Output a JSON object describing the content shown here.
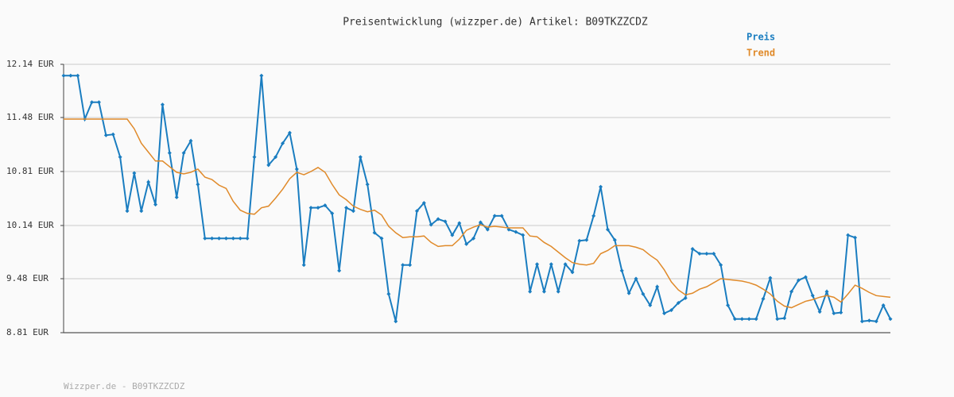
{
  "chart_data": {
    "type": "line",
    "title": "Preisentwicklung (wizzper.de) Artikel: B09TKZZCDZ",
    "footer": "Wizzper.de - B09TKZZCDZ",
    "categories": [
      null,
      null,
      null,
      null,
      null,
      null,
      null,
      null,
      null,
      null,
      null,
      null,
      null,
      null,
      null,
      null,
      null,
      null,
      null,
      null,
      null,
      null,
      null,
      null,
      null,
      null,
      null,
      null,
      null,
      null,
      null,
      null,
      null,
      null,
      null,
      null,
      null,
      null,
      null,
      null,
      null,
      null,
      null,
      null,
      null,
      null,
      null,
      null,
      null,
      null,
      null,
      null,
      null,
      null,
      null,
      null,
      null,
      null,
      null,
      null,
      null,
      null,
      null,
      null,
      null,
      null,
      null,
      null,
      null,
      null,
      null,
      null,
      null,
      null,
      null,
      null,
      null,
      null,
      null,
      null,
      null,
      null,
      null,
      null,
      null,
      null,
      null,
      null,
      null,
      null,
      null,
      null,
      null,
      null,
      null,
      null,
      null,
      null,
      null,
      null,
      null,
      null,
      null,
      null,
      null,
      null,
      null,
      null,
      null,
      null,
      null,
      null,
      null,
      null,
      null,
      null,
      null,
      null
    ],
    "series": [
      {
        "name": "Preis",
        "color": "#1a7dc0",
        "markers": true,
        "values": [
          12.0,
          12.0,
          12.0,
          11.46,
          11.67,
          11.67,
          11.26,
          11.27,
          10.99,
          10.32,
          10.79,
          10.32,
          10.68,
          10.4,
          11.64,
          11.04,
          10.49,
          11.04,
          11.19,
          10.65,
          9.98,
          9.98,
          9.98,
          9.98,
          9.98,
          9.98,
          9.98,
          10.99,
          12.0,
          10.89,
          10.99,
          11.16,
          11.29,
          10.84,
          9.65,
          10.36,
          10.36,
          10.39,
          10.29,
          9.58,
          10.36,
          10.32,
          10.99,
          10.65,
          10.05,
          9.98,
          9.29,
          8.95,
          9.65,
          9.65,
          10.32,
          10.42,
          10.15,
          10.22,
          10.19,
          10.02,
          10.17,
          9.91,
          9.98,
          10.18,
          10.09,
          10.26,
          10.26,
          10.09,
          10.06,
          10.02,
          9.32,
          9.66,
          9.32,
          9.66,
          9.32,
          9.66,
          9.56,
          9.95,
          9.96,
          10.26,
          10.62,
          10.09,
          9.96,
          9.58,
          9.3,
          9.48,
          9.29,
          9.15,
          9.38,
          9.05,
          9.09,
          9.18,
          9.24,
          9.85,
          9.79,
          9.79,
          9.79,
          9.65,
          9.15,
          8.98,
          8.98,
          8.98,
          8.98,
          9.23,
          9.49,
          8.98,
          8.99,
          9.32,
          9.46,
          9.5,
          9.27,
          9.07,
          9.32,
          9.05,
          9.06,
          10.02,
          9.99,
          8.95,
          8.96,
          8.95,
          9.15,
          8.98
        ]
      },
      {
        "name": "Trend",
        "color": "#e08a2a",
        "markers": false,
        "values": [
          11.46,
          11.46,
          11.46,
          11.46,
          11.46,
          11.46,
          11.46,
          11.46,
          11.46,
          11.46,
          11.34,
          11.16,
          11.05,
          10.94,
          10.94,
          10.87,
          10.8,
          10.78,
          10.8,
          10.84,
          10.74,
          10.71,
          10.64,
          10.6,
          10.44,
          10.33,
          10.29,
          10.28,
          10.36,
          10.38,
          10.48,
          10.59,
          10.72,
          10.8,
          10.77,
          10.81,
          10.86,
          10.8,
          10.65,
          10.52,
          10.46,
          10.38,
          10.34,
          10.31,
          10.33,
          10.27,
          10.13,
          10.05,
          9.99,
          10.0,
          10.0,
          10.01,
          9.93,
          9.88,
          9.89,
          9.89,
          9.97,
          10.08,
          10.12,
          10.15,
          10.12,
          10.13,
          10.12,
          10.11,
          10.11,
          10.11,
          10.01,
          10.0,
          9.93,
          9.88,
          9.81,
          9.74,
          9.68,
          9.66,
          9.65,
          9.67,
          9.79,
          9.83,
          9.89,
          9.89,
          9.89,
          9.87,
          9.84,
          9.77,
          9.71,
          9.59,
          9.44,
          9.34,
          9.28,
          9.3,
          9.35,
          9.38,
          9.43,
          9.48,
          9.47,
          9.46,
          9.45,
          9.43,
          9.4,
          9.35,
          9.29,
          9.2,
          9.14,
          9.12,
          9.16,
          9.2,
          9.22,
          9.25,
          9.27,
          9.25,
          9.19,
          9.29,
          9.4,
          9.36,
          9.31,
          9.27,
          9.26,
          9.25
        ]
      }
    ],
    "ylim": [
      8.81,
      12.14
    ],
    "yticks": [
      {
        "value": 8.81,
        "label": "8.81 EUR"
      },
      {
        "value": 9.48,
        "label": "9.48 EUR"
      },
      {
        "value": 10.14,
        "label": "10.14 EUR"
      },
      {
        "value": 10.81,
        "label": "10.81 EUR"
      },
      {
        "value": 11.48,
        "label": "11.48 EUR"
      },
      {
        "value": 12.14,
        "label": "12.14 EUR"
      }
    ],
    "grid": true
  }
}
